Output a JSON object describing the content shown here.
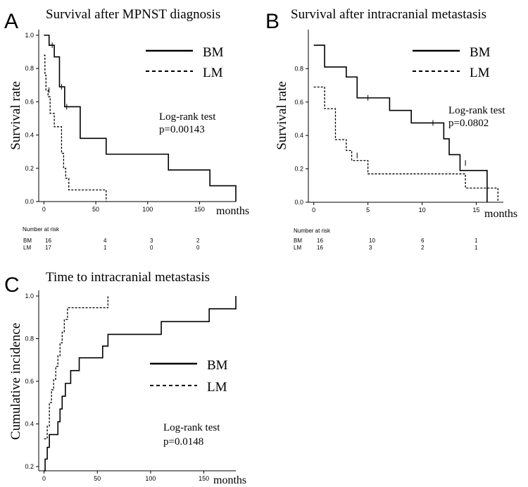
{
  "chart_data": [
    {
      "type": "line",
      "step": true,
      "panel_letter": "A",
      "title": "Survival after MPNST diagnosis",
      "xlabel": "months",
      "ylabel": "Survival rate",
      "xlim": [
        -5,
        185
      ],
      "ylim": [
        0,
        1.0
      ],
      "xticks": [
        0,
        50,
        100,
        150
      ],
      "yticks": [
        "0.0",
        "0.2",
        "0.4",
        "0.6",
        "0.8",
        "1.0"
      ],
      "legend": {
        "position": "top-right",
        "entries": [
          "BM",
          "LM"
        ]
      },
      "annotation": [
        "Log-rank test",
        "p=0.00143"
      ],
      "series": [
        {
          "name": "BM",
          "style": "solid",
          "x": [
            0,
            5,
            10,
            15,
            20,
            22,
            35,
            60,
            120,
            160,
            185
          ],
          "y": [
            1.0,
            0.94,
            0.87,
            0.69,
            0.57,
            0.57,
            0.38,
            0.285,
            0.19,
            0.095,
            0.0
          ],
          "censor_x": [
            8,
            17,
            22
          ],
          "censor_y": [
            0.94,
            0.69,
            0.57
          ]
        },
        {
          "name": "LM",
          "style": "dashed",
          "x": [
            0,
            1,
            2,
            4,
            6,
            10,
            17,
            19,
            21,
            24,
            28,
            60
          ],
          "y": [
            0.88,
            0.76,
            0.67,
            0.63,
            0.53,
            0.45,
            0.29,
            0.2,
            0.14,
            0.07,
            0.07,
            0.0
          ],
          "censor_x": [
            5
          ],
          "censor_y": [
            0.67
          ]
        }
      ],
      "risk_table": {
        "heading": "Number at risk",
        "rows": [
          {
            "label": "BM",
            "counts": [
              "16",
              "4",
              "3",
              "2"
            ]
          },
          {
            "label": "LM",
            "counts": [
              "17",
              "1",
              "0",
              "0"
            ]
          }
        ]
      }
    },
    {
      "type": "line",
      "step": true,
      "panel_letter": "B",
      "title": "Survival after intracranial metastasis",
      "xlabel": "months",
      "ylabel": "Survival rate",
      "xlim": [
        -0.5,
        17.5
      ],
      "ylim": [
        0,
        1.0
      ],
      "xticks": [
        0,
        5,
        10,
        15
      ],
      "yticks": [
        "0.0",
        "0.2",
        "0.4",
        "0.6",
        "0.8"
      ],
      "legend": {
        "position": "top-right",
        "entries": [
          "BM",
          "LM"
        ]
      },
      "annotation": [
        "Log-rank test",
        "p=0.0802"
      ],
      "series": [
        {
          "name": "BM",
          "style": "solid",
          "x": [
            0,
            1,
            3,
            4,
            5,
            7,
            9,
            12,
            12.5,
            13,
            13.5,
            16
          ],
          "y": [
            0.94,
            0.81,
            0.75,
            0.625,
            0.625,
            0.55,
            0.475,
            0.38,
            0.285,
            0.285,
            0.19,
            0.0
          ],
          "censor_x": [
            5,
            7,
            11,
            14
          ],
          "censor_y": [
            0.625,
            0.59,
            0.475,
            0.235
          ]
        },
        {
          "name": "LM",
          "style": "dashed",
          "x": [
            0,
            1,
            2,
            3,
            3.5,
            4,
            5,
            14,
            17
          ],
          "y": [
            0.69,
            0.56,
            0.375,
            0.31,
            0.25,
            0.25,
            0.17,
            0.085,
            0.0
          ],
          "censor_x": [
            4
          ],
          "censor_y": [
            0.28
          ]
        }
      ],
      "risk_table": {
        "heading": "Number at risk",
        "rows": [
          {
            "label": "BM",
            "counts": [
              "16",
              "10",
              "6",
              "1"
            ]
          },
          {
            "label": "LM",
            "counts": [
              "16",
              "3",
              "2",
              "1"
            ]
          }
        ]
      }
    },
    {
      "type": "line",
      "step": true,
      "panel_letter": "C",
      "title": "Time to intracranial metastasis",
      "xlabel": "months",
      "ylabel": "Cumulative incidence",
      "xlim": [
        -5,
        180
      ],
      "ylim": [
        0.18,
        1.0
      ],
      "xticks": [
        0,
        50,
        100,
        150
      ],
      "yticks": [
        "0.2",
        "0.4",
        "0.6",
        "0.8",
        "1.0"
      ],
      "legend": {
        "position": "middle-right",
        "entries": [
          "BM",
          "LM"
        ]
      },
      "annotation": [
        "Log-rank test",
        "p=0.0148"
      ],
      "series": [
        {
          "name": "BM",
          "style": "solid",
          "x": [
            0,
            1,
            3,
            5,
            13,
            15,
            17,
            20,
            25,
            33,
            55,
            60,
            110,
            155,
            180
          ],
          "y": [
            0.18,
            0.235,
            0.29,
            0.35,
            0.41,
            0.47,
            0.53,
            0.59,
            0.65,
            0.71,
            0.765,
            0.82,
            0.88,
            0.94,
            1.0
          ]
        },
        {
          "name": "LM",
          "style": "dashed",
          "x": [
            0,
            3,
            5,
            7,
            9,
            11,
            13,
            15,
            17,
            19,
            22,
            60
          ],
          "y": [
            0.33,
            0.39,
            0.5,
            0.56,
            0.61,
            0.67,
            0.72,
            0.78,
            0.83,
            0.89,
            0.945,
            1.0
          ]
        }
      ]
    }
  ]
}
